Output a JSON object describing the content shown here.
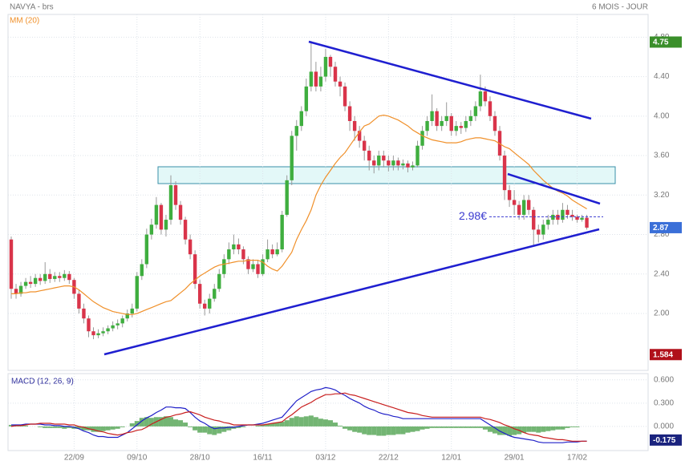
{
  "chart_data": [
    {
      "type": "candlestick",
      "title": "NAVYA - brs",
      "subtitle": "6 MOIS - JOUR",
      "categories": [
        null,
        null,
        null,
        null,
        null,
        null,
        null,
        null,
        null,
        null,
        null,
        null,
        null,
        "22/09",
        null,
        null,
        null,
        null,
        null,
        null,
        null,
        null,
        null,
        null,
        null,
        null,
        "09/10",
        null,
        null,
        null,
        null,
        null,
        null,
        null,
        null,
        null,
        null,
        null,
        null,
        "28/10",
        null,
        null,
        null,
        null,
        null,
        null,
        null,
        null,
        null,
        null,
        null,
        null,
        "16/11",
        null,
        null,
        null,
        null,
        null,
        null,
        null,
        null,
        null,
        null,
        null,
        null,
        "03/12",
        null,
        null,
        null,
        null,
        null,
        null,
        null,
        null,
        null,
        null,
        null,
        null,
        "22/12",
        null,
        null,
        null,
        null,
        null,
        null,
        null,
        null,
        null,
        null,
        null,
        null,
        "12/01",
        null,
        null,
        null,
        null,
        null,
        null,
        null,
        null,
        null,
        null,
        null,
        null,
        "29/01",
        null,
        null,
        null,
        null,
        null,
        null,
        null,
        null,
        null,
        null,
        null,
        null,
        "17/02",
        null,
        null
      ],
      "open": [
        2.75,
        2.25,
        2.2,
        2.28,
        2.32,
        2.3,
        2.36,
        2.33,
        2.4,
        2.35,
        2.38,
        2.36,
        2.4,
        2.34,
        2.2,
        2.05,
        1.95,
        1.82,
        1.78,
        1.8,
        1.82,
        1.85,
        1.88,
        1.9,
        1.95,
        2.0,
        2.05,
        2.38,
        2.5,
        2.8,
        2.9,
        3.1,
        2.85,
        2.95,
        3.3,
        3.1,
        2.95,
        2.75,
        2.6,
        2.3,
        2.1,
        2.05,
        2.15,
        2.25,
        2.4,
        2.55,
        2.65,
        2.7,
        2.65,
        2.55,
        2.45,
        2.5,
        2.4,
        2.55,
        2.65,
        2.6,
        2.65,
        3.0,
        3.35,
        3.8,
        3.9,
        4.05,
        4.3,
        4.45,
        4.3,
        4.4,
        4.6,
        4.5,
        4.35,
        4.3,
        4.1,
        3.95,
        3.85,
        3.75,
        3.65,
        3.55,
        3.5,
        3.6,
        3.55,
        3.5,
        3.55,
        3.5,
        3.52,
        3.48,
        3.5,
        3.7,
        3.85,
        3.95,
        4.05,
        3.9,
        3.95,
        4.0,
        3.85,
        3.9,
        3.88,
        3.95,
        4.0,
        4.1,
        4.25,
        4.15,
        4.0,
        3.85,
        3.6,
        3.25,
        3.15,
        3.1,
        3.0,
        3.15,
        3.05,
        2.85,
        2.8,
        2.9,
        2.95,
        3.0,
        2.95,
        3.05,
        3.0,
        2.98,
        2.95,
        2.97
      ],
      "high": [
        2.78,
        2.3,
        2.32,
        2.36,
        2.38,
        2.4,
        2.4,
        2.52,
        2.45,
        2.42,
        2.42,
        2.44,
        2.43,
        2.36,
        2.24,
        2.1,
        1.98,
        1.86,
        1.84,
        1.86,
        1.88,
        1.92,
        1.94,
        1.98,
        2.04,
        2.1,
        2.42,
        2.55,
        2.86,
        2.96,
        3.18,
        3.12,
        3.0,
        3.4,
        3.34,
        3.14,
        2.98,
        2.8,
        2.64,
        2.34,
        2.14,
        2.2,
        2.3,
        2.45,
        2.6,
        2.72,
        2.8,
        2.76,
        2.68,
        2.58,
        2.55,
        2.54,
        2.6,
        2.75,
        2.7,
        2.72,
        3.04,
        3.4,
        3.85,
        3.96,
        4.1,
        4.38,
        4.76,
        4.55,
        4.5,
        4.68,
        4.62,
        4.55,
        4.4,
        4.34,
        4.15,
        4.0,
        3.9,
        3.8,
        3.7,
        3.6,
        3.65,
        3.65,
        3.6,
        3.6,
        3.58,
        3.56,
        3.55,
        3.54,
        3.75,
        3.9,
        4.0,
        4.22,
        4.08,
        4.0,
        4.14,
        4.03,
        3.95,
        3.94,
        4.0,
        4.06,
        4.15,
        4.42,
        4.3,
        4.2,
        4.05,
        3.9,
        3.65,
        3.3,
        3.25,
        3.14,
        3.2,
        3.2,
        3.08,
        2.9,
        2.95,
        3.0,
        3.05,
        3.05,
        3.12,
        3.1,
        3.05,
        3.0,
        3.0,
        3.0
      ],
      "low": [
        2.15,
        2.15,
        2.17,
        2.25,
        2.26,
        2.27,
        2.29,
        2.3,
        2.31,
        2.32,
        2.32,
        2.33,
        2.3,
        2.15,
        2.0,
        1.9,
        1.76,
        1.74,
        1.75,
        1.77,
        1.79,
        1.82,
        1.84,
        1.86,
        1.92,
        1.96,
        2.02,
        2.34,
        2.46,
        2.75,
        2.86,
        2.8,
        2.78,
        2.9,
        3.05,
        2.9,
        2.7,
        2.55,
        2.25,
        2.05,
        1.98,
        2.0,
        2.12,
        2.22,
        2.36,
        2.5,
        2.6,
        2.6,
        2.5,
        2.4,
        2.42,
        2.36,
        2.38,
        2.52,
        2.56,
        2.58,
        2.62,
        2.98,
        3.3,
        3.65,
        3.85,
        4.0,
        4.25,
        4.25,
        4.25,
        4.35,
        4.4,
        4.3,
        4.2,
        4.05,
        3.85,
        3.75,
        3.68,
        3.55,
        3.45,
        3.42,
        3.45,
        3.48,
        3.44,
        3.45,
        3.45,
        3.46,
        3.43,
        3.45,
        3.48,
        3.66,
        3.8,
        3.9,
        3.85,
        3.85,
        3.9,
        3.8,
        3.8,
        3.82,
        3.84,
        3.9,
        3.95,
        4.05,
        4.1,
        3.95,
        3.8,
        3.55,
        3.15,
        3.08,
        3.0,
        2.95,
        2.95,
        3.0,
        2.68,
        2.72,
        2.75,
        2.85,
        2.9,
        2.9,
        2.92,
        2.96,
        2.94,
        2.92,
        2.93,
        2.85
      ],
      "close": [
        2.25,
        2.2,
        2.28,
        2.32,
        2.3,
        2.36,
        2.33,
        2.4,
        2.35,
        2.38,
        2.36,
        2.4,
        2.34,
        2.2,
        2.05,
        1.95,
        1.82,
        1.78,
        1.8,
        1.82,
        1.85,
        1.88,
        1.9,
        1.95,
        2.0,
        2.05,
        2.38,
        2.5,
        2.8,
        2.9,
        3.1,
        2.85,
        2.95,
        3.3,
        3.1,
        2.95,
        2.75,
        2.6,
        2.3,
        2.1,
        2.05,
        2.15,
        2.25,
        2.4,
        2.55,
        2.65,
        2.7,
        2.65,
        2.55,
        2.45,
        2.5,
        2.4,
        2.55,
        2.65,
        2.6,
        2.65,
        3.0,
        3.35,
        3.8,
        3.9,
        4.05,
        4.3,
        4.45,
        4.3,
        4.4,
        4.6,
        4.5,
        4.35,
        4.3,
        4.1,
        3.95,
        3.85,
        3.75,
        3.65,
        3.55,
        3.5,
        3.6,
        3.55,
        3.5,
        3.55,
        3.5,
        3.52,
        3.48,
        3.5,
        3.7,
        3.85,
        3.95,
        4.05,
        3.9,
        3.95,
        4.0,
        3.85,
        3.9,
        3.88,
        3.95,
        4.0,
        4.1,
        4.25,
        4.15,
        4.0,
        3.85,
        3.6,
        3.25,
        3.15,
        3.1,
        3.0,
        3.15,
        3.05,
        2.85,
        2.8,
        2.9,
        2.95,
        3.0,
        2.95,
        3.05,
        3.0,
        2.98,
        2.95,
        2.97,
        2.87
      ],
      "up_color": "#3fae3f",
      "down_color": "#d9344a",
      "series": [
        {
          "name": "MM (20)",
          "color": "#f0902a",
          "values": [
            2.2,
            2.2,
            2.21,
            2.21,
            2.22,
            2.22,
            2.23,
            2.24,
            2.25,
            2.26,
            2.27,
            2.28,
            2.28,
            2.27,
            2.24,
            2.2,
            2.16,
            2.12,
            2.09,
            2.06,
            2.04,
            2.02,
            2.01,
            2.0,
            1.99,
            1.99,
            2.0,
            2.02,
            2.04,
            2.06,
            2.08,
            2.1,
            2.12,
            2.13,
            2.17,
            2.21,
            2.25,
            2.3,
            2.34,
            2.38,
            2.41,
            2.44,
            2.47,
            2.49,
            2.5,
            2.51,
            2.52,
            2.53,
            2.53,
            2.54,
            2.54,
            2.54,
            2.52,
            2.48,
            2.45,
            2.43,
            2.48,
            2.55,
            2.62,
            2.75,
            2.85,
            2.94,
            3.05,
            3.2,
            3.3,
            3.38,
            3.45,
            3.52,
            3.58,
            3.63,
            3.7,
            3.77,
            3.84,
            3.9,
            3.92,
            3.96,
            4.0,
            4.01,
            4.0,
            3.98,
            3.96,
            3.93,
            3.9,
            3.86,
            3.83,
            3.8,
            3.78,
            3.76,
            3.75,
            3.74,
            3.73,
            3.73,
            3.73,
            3.74,
            3.76,
            3.77,
            3.78,
            3.78,
            3.77,
            3.76,
            3.75,
            3.72,
            3.69,
            3.67,
            3.63,
            3.59,
            3.55,
            3.51,
            3.45,
            3.4,
            3.35,
            3.31,
            3.27,
            3.24,
            3.22,
            3.19,
            3.15,
            3.12,
            3.09,
            3.06
          ]
        }
      ],
      "ylim": [
        1.44,
        5.03
      ],
      "yticks": [
        {
          "value": 2.0,
          "label": "2.00"
        },
        {
          "value": 2.4,
          "label": "2.40"
        },
        {
          "value": 2.8,
          "label": "2.80"
        },
        {
          "value": 3.2,
          "label": "3.20"
        },
        {
          "value": 3.6,
          "label": "3.60"
        },
        {
          "value": 4.0,
          "label": "4.00"
        },
        {
          "value": 4.4,
          "label": "4.40"
        },
        {
          "value": 4.8,
          "label": "4.80"
        }
      ],
      "grid": true,
      "badges": [
        {
          "value": 4.75,
          "color": "#3a8f2a"
        },
        {
          "value": 2.87,
          "color": "#3a6fd8"
        },
        {
          "value": 1.584,
          "color": "#b0101a"
        }
      ],
      "annotations": [
        {
          "value": 2.98,
          "label": "2.98€"
        }
      ]
    },
    {
      "type": "macd",
      "title": "MACD (12, 26, 9)",
      "histogram": {
        "color": "#5aa85a",
        "values": [
          0.02,
          0.01,
          0.01,
          0.01,
          0.0,
          0.0,
          -0.01,
          -0.02,
          -0.02,
          -0.02,
          -0.02,
          -0.03,
          -0.02,
          -0.03,
          -0.03,
          -0.05,
          -0.05,
          -0.07,
          -0.07,
          -0.06,
          -0.05,
          -0.04,
          -0.03,
          -0.01,
          0.0,
          0.04,
          0.07,
          0.11,
          0.12,
          0.11,
          0.12,
          0.12,
          0.13,
          0.12,
          0.09,
          0.08,
          0.05,
          -0.01,
          -0.05,
          -0.08,
          -0.08,
          -0.1,
          -0.11,
          -0.09,
          -0.07,
          -0.05,
          -0.03,
          -0.02,
          -0.01,
          0.0,
          0.0,
          0.01,
          0.02,
          0.03,
          0.04,
          0.05,
          0.06,
          0.08,
          0.11,
          0.13,
          0.12,
          0.13,
          0.14,
          0.12,
          0.1,
          0.09,
          0.08,
          0.05,
          0.01,
          -0.03,
          -0.05,
          -0.07,
          -0.08,
          -0.1,
          -0.11,
          -0.11,
          -0.12,
          -0.12,
          -0.11,
          -0.11,
          -0.1,
          -0.1,
          -0.08,
          -0.07,
          -0.06,
          -0.04,
          -0.03,
          -0.02,
          -0.02,
          -0.02,
          -0.02,
          -0.02,
          -0.02,
          -0.02,
          -0.02,
          -0.02,
          -0.02,
          -0.02,
          -0.04,
          -0.07,
          -0.09,
          -0.11,
          -0.11,
          -0.12,
          -0.11,
          -0.1,
          -0.08,
          -0.07,
          -0.07,
          -0.08,
          -0.07,
          -0.06,
          -0.05,
          -0.04,
          -0.04,
          -0.02,
          -0.01,
          -0.01,
          0.0,
          0.0
        ]
      },
      "series": [
        {
          "color": "#2020c8",
          "values": [
            0.02,
            0.02,
            0.02,
            0.03,
            0.03,
            0.03,
            0.03,
            0.02,
            0.02,
            0.01,
            0.01,
            0.0,
            0.0,
            -0.01,
            -0.03,
            -0.06,
            -0.08,
            -0.11,
            -0.13,
            -0.13,
            -0.14,
            -0.14,
            -0.14,
            -0.11,
            -0.08,
            -0.03,
            0.02,
            0.07,
            0.11,
            0.14,
            0.18,
            0.21,
            0.25,
            0.25,
            0.24,
            0.24,
            0.23,
            0.18,
            0.12,
            0.07,
            0.04,
            0.0,
            -0.03,
            -0.02,
            -0.02,
            -0.01,
            -0.01,
            0.0,
            0.01,
            0.02,
            0.02,
            0.03,
            0.04,
            0.06,
            0.08,
            0.1,
            0.12,
            0.19,
            0.26,
            0.33,
            0.37,
            0.41,
            0.45,
            0.47,
            0.48,
            0.5,
            0.49,
            0.47,
            0.43,
            0.4,
            0.36,
            0.33,
            0.3,
            0.26,
            0.23,
            0.21,
            0.18,
            0.16,
            0.15,
            0.13,
            0.12,
            0.1,
            0.1,
            0.1,
            0.1,
            0.1,
            0.1,
            0.1,
            0.1,
            0.1,
            0.1,
            0.1,
            0.1,
            0.1,
            0.1,
            0.1,
            0.1,
            0.1,
            0.06,
            0.02,
            -0.02,
            -0.06,
            -0.09,
            -0.12,
            -0.14,
            -0.15,
            -0.16,
            -0.17,
            -0.18,
            -0.2,
            -0.21,
            -0.21,
            -0.21,
            -0.21,
            -0.21,
            -0.2,
            -0.2,
            -0.2,
            -0.19,
            -0.19
          ]
        },
        {
          "color": "#c81e1e",
          "values": [
            0.0,
            0.01,
            0.01,
            0.02,
            0.03,
            0.03,
            0.04,
            0.04,
            0.04,
            0.03,
            0.03,
            0.03,
            0.02,
            0.02,
            0.0,
            -0.01,
            -0.03,
            -0.04,
            -0.06,
            -0.07,
            -0.09,
            -0.1,
            -0.11,
            -0.1,
            -0.08,
            -0.07,
            -0.05,
            -0.04,
            -0.01,
            0.03,
            0.06,
            0.09,
            0.12,
            0.13,
            0.15,
            0.16,
            0.18,
            0.19,
            0.17,
            0.15,
            0.12,
            0.1,
            0.08,
            0.07,
            0.05,
            0.04,
            0.02,
            0.02,
            0.02,
            0.02,
            0.02,
            0.02,
            0.02,
            0.03,
            0.04,
            0.05,
            0.06,
            0.11,
            0.15,
            0.2,
            0.25,
            0.28,
            0.31,
            0.35,
            0.38,
            0.41,
            0.41,
            0.42,
            0.42,
            0.43,
            0.41,
            0.4,
            0.38,
            0.36,
            0.34,
            0.32,
            0.3,
            0.28,
            0.26,
            0.24,
            0.22,
            0.2,
            0.18,
            0.17,
            0.16,
            0.14,
            0.13,
            0.12,
            0.12,
            0.12,
            0.12,
            0.12,
            0.12,
            0.12,
            0.12,
            0.12,
            0.12,
            0.12,
            0.1,
            0.09,
            0.07,
            0.05,
            0.02,
            0.0,
            -0.03,
            -0.05,
            -0.08,
            -0.1,
            -0.11,
            -0.12,
            -0.14,
            -0.15,
            -0.16,
            -0.17,
            -0.17,
            -0.18,
            -0.19,
            -0.19,
            -0.19,
            -0.19
          ]
        }
      ],
      "ylim": [
        -0.29,
        0.68
      ],
      "yticks": [
        {
          "value": 0.6,
          "label": "0.600"
        },
        {
          "value": 0.3,
          "label": "0.300"
        },
        {
          "value": 0,
          "label": "0.000"
        }
      ],
      "badges": [
        {
          "value": -0.175,
          "color": "#1a237e"
        }
      ]
    }
  ]
}
